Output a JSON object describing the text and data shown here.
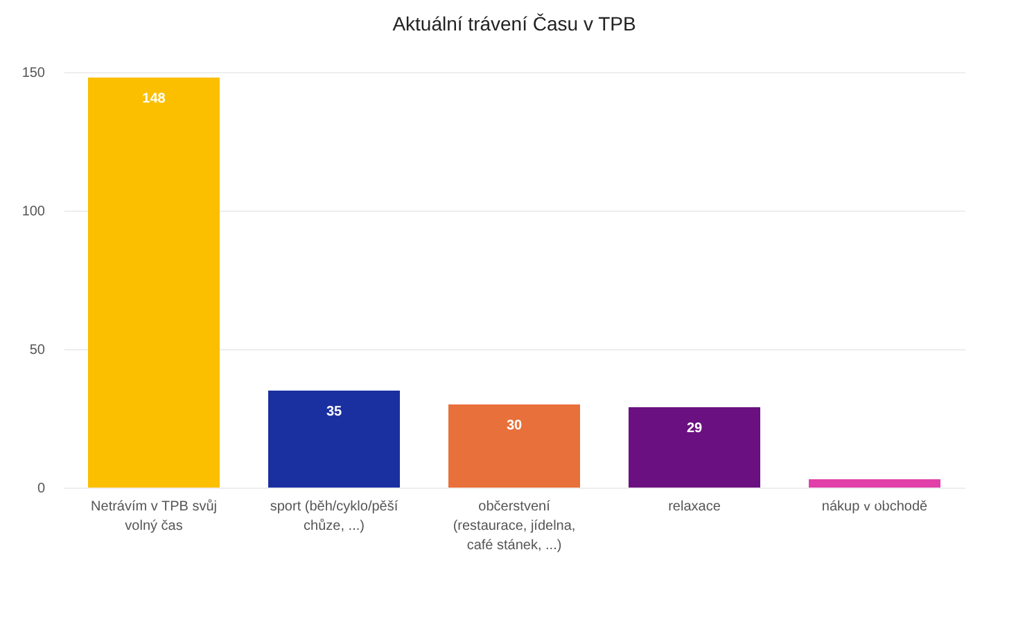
{
  "chart_data": {
    "type": "bar",
    "title": "Aktuální trávení Času v TPB",
    "categories": [
      "Netrávím v TPB svůj volný čas",
      "sport (běh/cyklo/pěší chůze, ...)",
      "občerstvení (restaurace, jídelna, café stánek, ...)",
      "relaxace",
      "nákup v obchodě"
    ],
    "values": [
      148,
      35,
      30,
      29,
      3
    ],
    "value_labels": [
      "148",
      "35",
      "30",
      "29",
      null
    ],
    "colors": [
      "#fbbf00",
      "#1a2fa0",
      "#e8703a",
      "#6a1080",
      "#e040a8"
    ],
    "ylim": [
      0,
      150
    ],
    "yticks": [
      0,
      50,
      100,
      150
    ],
    "grid": "y"
  }
}
